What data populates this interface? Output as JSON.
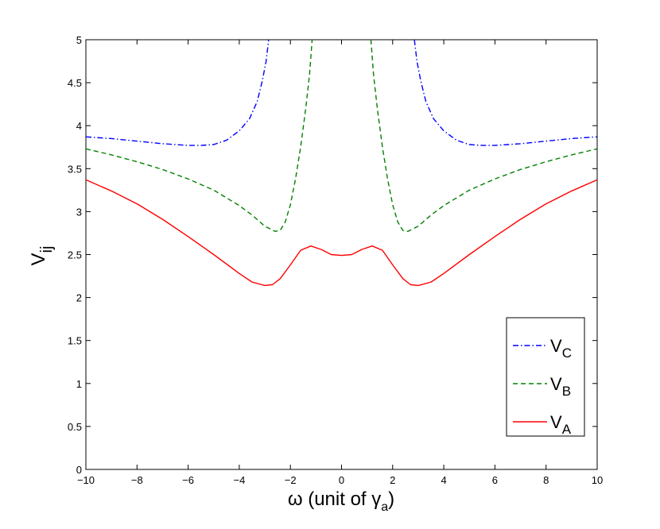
{
  "chart_data": {
    "type": "line",
    "title": "",
    "xlabel": {
      "main": "ω (unit of γ",
      "sub": "a",
      "close": ")"
    },
    "ylabel": {
      "main": "V",
      "sub": "ij"
    },
    "xlim": [
      -10,
      10
    ],
    "ylim": [
      0,
      5
    ],
    "xticks": [
      -10,
      -8,
      -6,
      -4,
      -2,
      0,
      2,
      4,
      6,
      8,
      10
    ],
    "yticks": [
      0,
      0.5,
      1,
      1.5,
      2,
      2.5,
      3,
      3.5,
      4,
      4.5,
      5
    ],
    "xtick_labels": [
      "−10",
      "−8",
      "−6",
      "−4",
      "−2",
      "0",
      "2",
      "4",
      "6",
      "8",
      "10"
    ],
    "ytick_labels": [
      "0",
      "0.5",
      "1",
      "1.5",
      "2",
      "2.5",
      "3",
      "3.5",
      "4",
      "4.5",
      "5"
    ],
    "grid": false,
    "legend_position": "lower-right",
    "series": [
      {
        "name": {
          "main": "V",
          "sub": "C"
        },
        "color": "#0000ff",
        "dash": "dashdot",
        "segments": [
          {
            "x": [
              -10,
              -9,
              -8,
              -7,
              -6,
              -5.5,
              -5,
              -4.5,
              -4,
              -3.6,
              -3.3,
              -3.1,
              -2.95,
              -2.85
            ],
            "y": [
              3.87,
              3.85,
              3.82,
              3.79,
              3.77,
              3.77,
              3.78,
              3.83,
              3.94,
              4.08,
              4.28,
              4.52,
              4.75,
              5.0
            ]
          },
          {
            "x": [
              2.85,
              2.95,
              3.1,
              3.3,
              3.6,
              4,
              4.5,
              5,
              5.5,
              6,
              7,
              8,
              9,
              10
            ],
            "y": [
              5.0,
              4.75,
              4.52,
              4.28,
              4.08,
              3.94,
              3.83,
              3.78,
              3.77,
              3.77,
              3.79,
              3.82,
              3.85,
              3.87
            ]
          }
        ]
      },
      {
        "name": {
          "main": "V",
          "sub": "B"
        },
        "color": "#008000",
        "dash": "dashed",
        "segments": [
          {
            "x": [
              -10,
              -9,
              -8,
              -7,
              -6,
              -5,
              -4,
              -3.5,
              -3,
              -2.6,
              -2.4,
              -2.2,
              -2.0,
              -1.8,
              -1.6,
              -1.4,
              -1.25,
              -1.15
            ],
            "y": [
              3.73,
              3.66,
              3.58,
              3.49,
              3.38,
              3.25,
              3.07,
              2.96,
              2.83,
              2.77,
              2.78,
              2.88,
              3.08,
              3.38,
              3.75,
              4.2,
              4.6,
              5.0
            ]
          },
          {
            "x": [
              1.15,
              1.25,
              1.4,
              1.6,
              1.8,
              2.0,
              2.2,
              2.4,
              2.6,
              3,
              3.5,
              4,
              5,
              6,
              7,
              8,
              9,
              10
            ],
            "y": [
              5.0,
              4.6,
              4.2,
              3.75,
              3.38,
              3.08,
              2.88,
              2.78,
              2.77,
              2.83,
              2.96,
              3.07,
              3.25,
              3.38,
              3.49,
              3.58,
              3.66,
              3.73
            ]
          }
        ]
      },
      {
        "name": {
          "main": "V",
          "sub": "A"
        },
        "color": "#ff0000",
        "dash": "solid",
        "segments": [
          {
            "x": [
              -10,
              -9,
              -8,
              -7,
              -6,
              -5,
              -4,
              -3.5,
              -3,
              -2.7,
              -2.4,
              -2,
              -1.6,
              -1.2,
              -0.8,
              -0.4,
              0,
              0.4,
              0.8,
              1.2,
              1.6,
              2,
              2.4,
              2.7,
              3,
              3.5,
              4,
              5,
              6,
              7,
              8,
              9,
              10
            ],
            "y": [
              3.37,
              3.24,
              3.09,
              2.91,
              2.71,
              2.5,
              2.28,
              2.18,
              2.14,
              2.15,
              2.22,
              2.38,
              2.55,
              2.6,
              2.56,
              2.5,
              2.49,
              2.5,
              2.56,
              2.6,
              2.55,
              2.38,
              2.22,
              2.15,
              2.14,
              2.18,
              2.28,
              2.5,
              2.71,
              2.91,
              3.09,
              3.24,
              3.37
            ]
          }
        ]
      }
    ]
  }
}
